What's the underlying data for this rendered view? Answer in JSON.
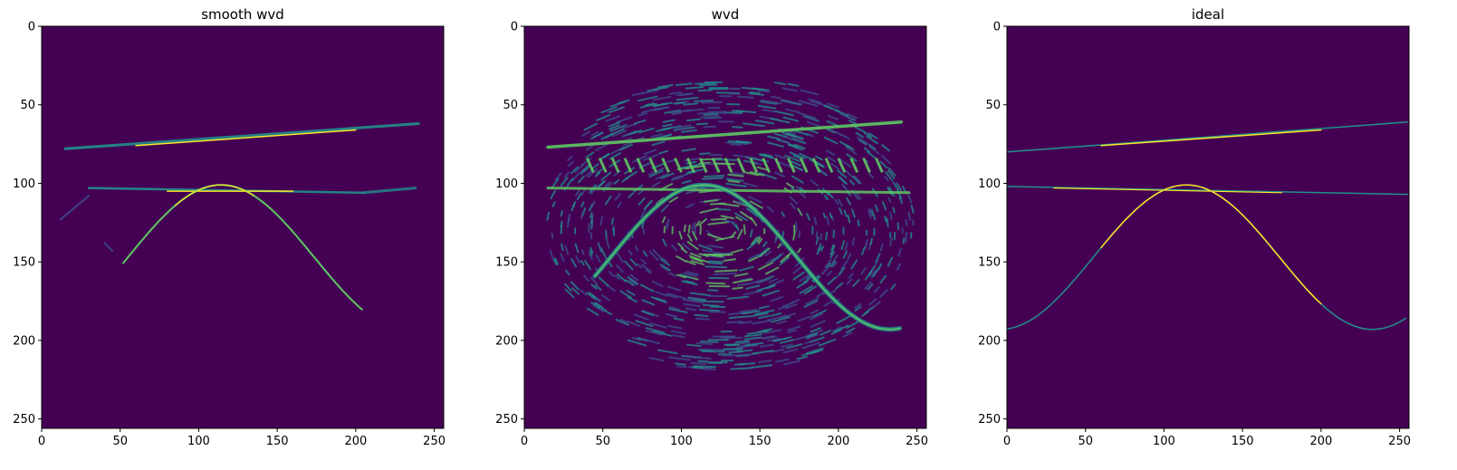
{
  "colors": {
    "background": "#440154",
    "dim": "#3b528b",
    "mid": "#21918c",
    "bright": "#5ec962",
    "peak": "#fde725"
  },
  "chart_data": [
    {
      "type": "heatmap",
      "title": "smooth wvd",
      "xlim": [
        0,
        255
      ],
      "ylim": [
        255,
        0
      ],
      "xticks": [
        "0",
        "50",
        "100",
        "150",
        "200",
        "250"
      ],
      "yticks": [
        "0",
        "50",
        "100",
        "150",
        "200",
        "250"
      ],
      "colormap": "viridis",
      "grid": false
    },
    {
      "type": "heatmap",
      "title": "wvd",
      "xlim": [
        0,
        255
      ],
      "ylim": [
        255,
        0
      ],
      "xticks": [
        "0",
        "50",
        "100",
        "150",
        "200",
        "250"
      ],
      "yticks": [
        "0",
        "50",
        "100",
        "150",
        "200",
        "250"
      ],
      "colormap": "viridis",
      "grid": false
    },
    {
      "type": "heatmap",
      "title": "ideal",
      "xlim": [
        0,
        255
      ],
      "ylim": [
        255,
        0
      ],
      "xticks": [
        "0",
        "50",
        "100",
        "150",
        "200",
        "250"
      ],
      "yticks": [
        "0",
        "50",
        "100",
        "150",
        "200",
        "250"
      ],
      "colormap": "viridis",
      "grid": false
    }
  ]
}
